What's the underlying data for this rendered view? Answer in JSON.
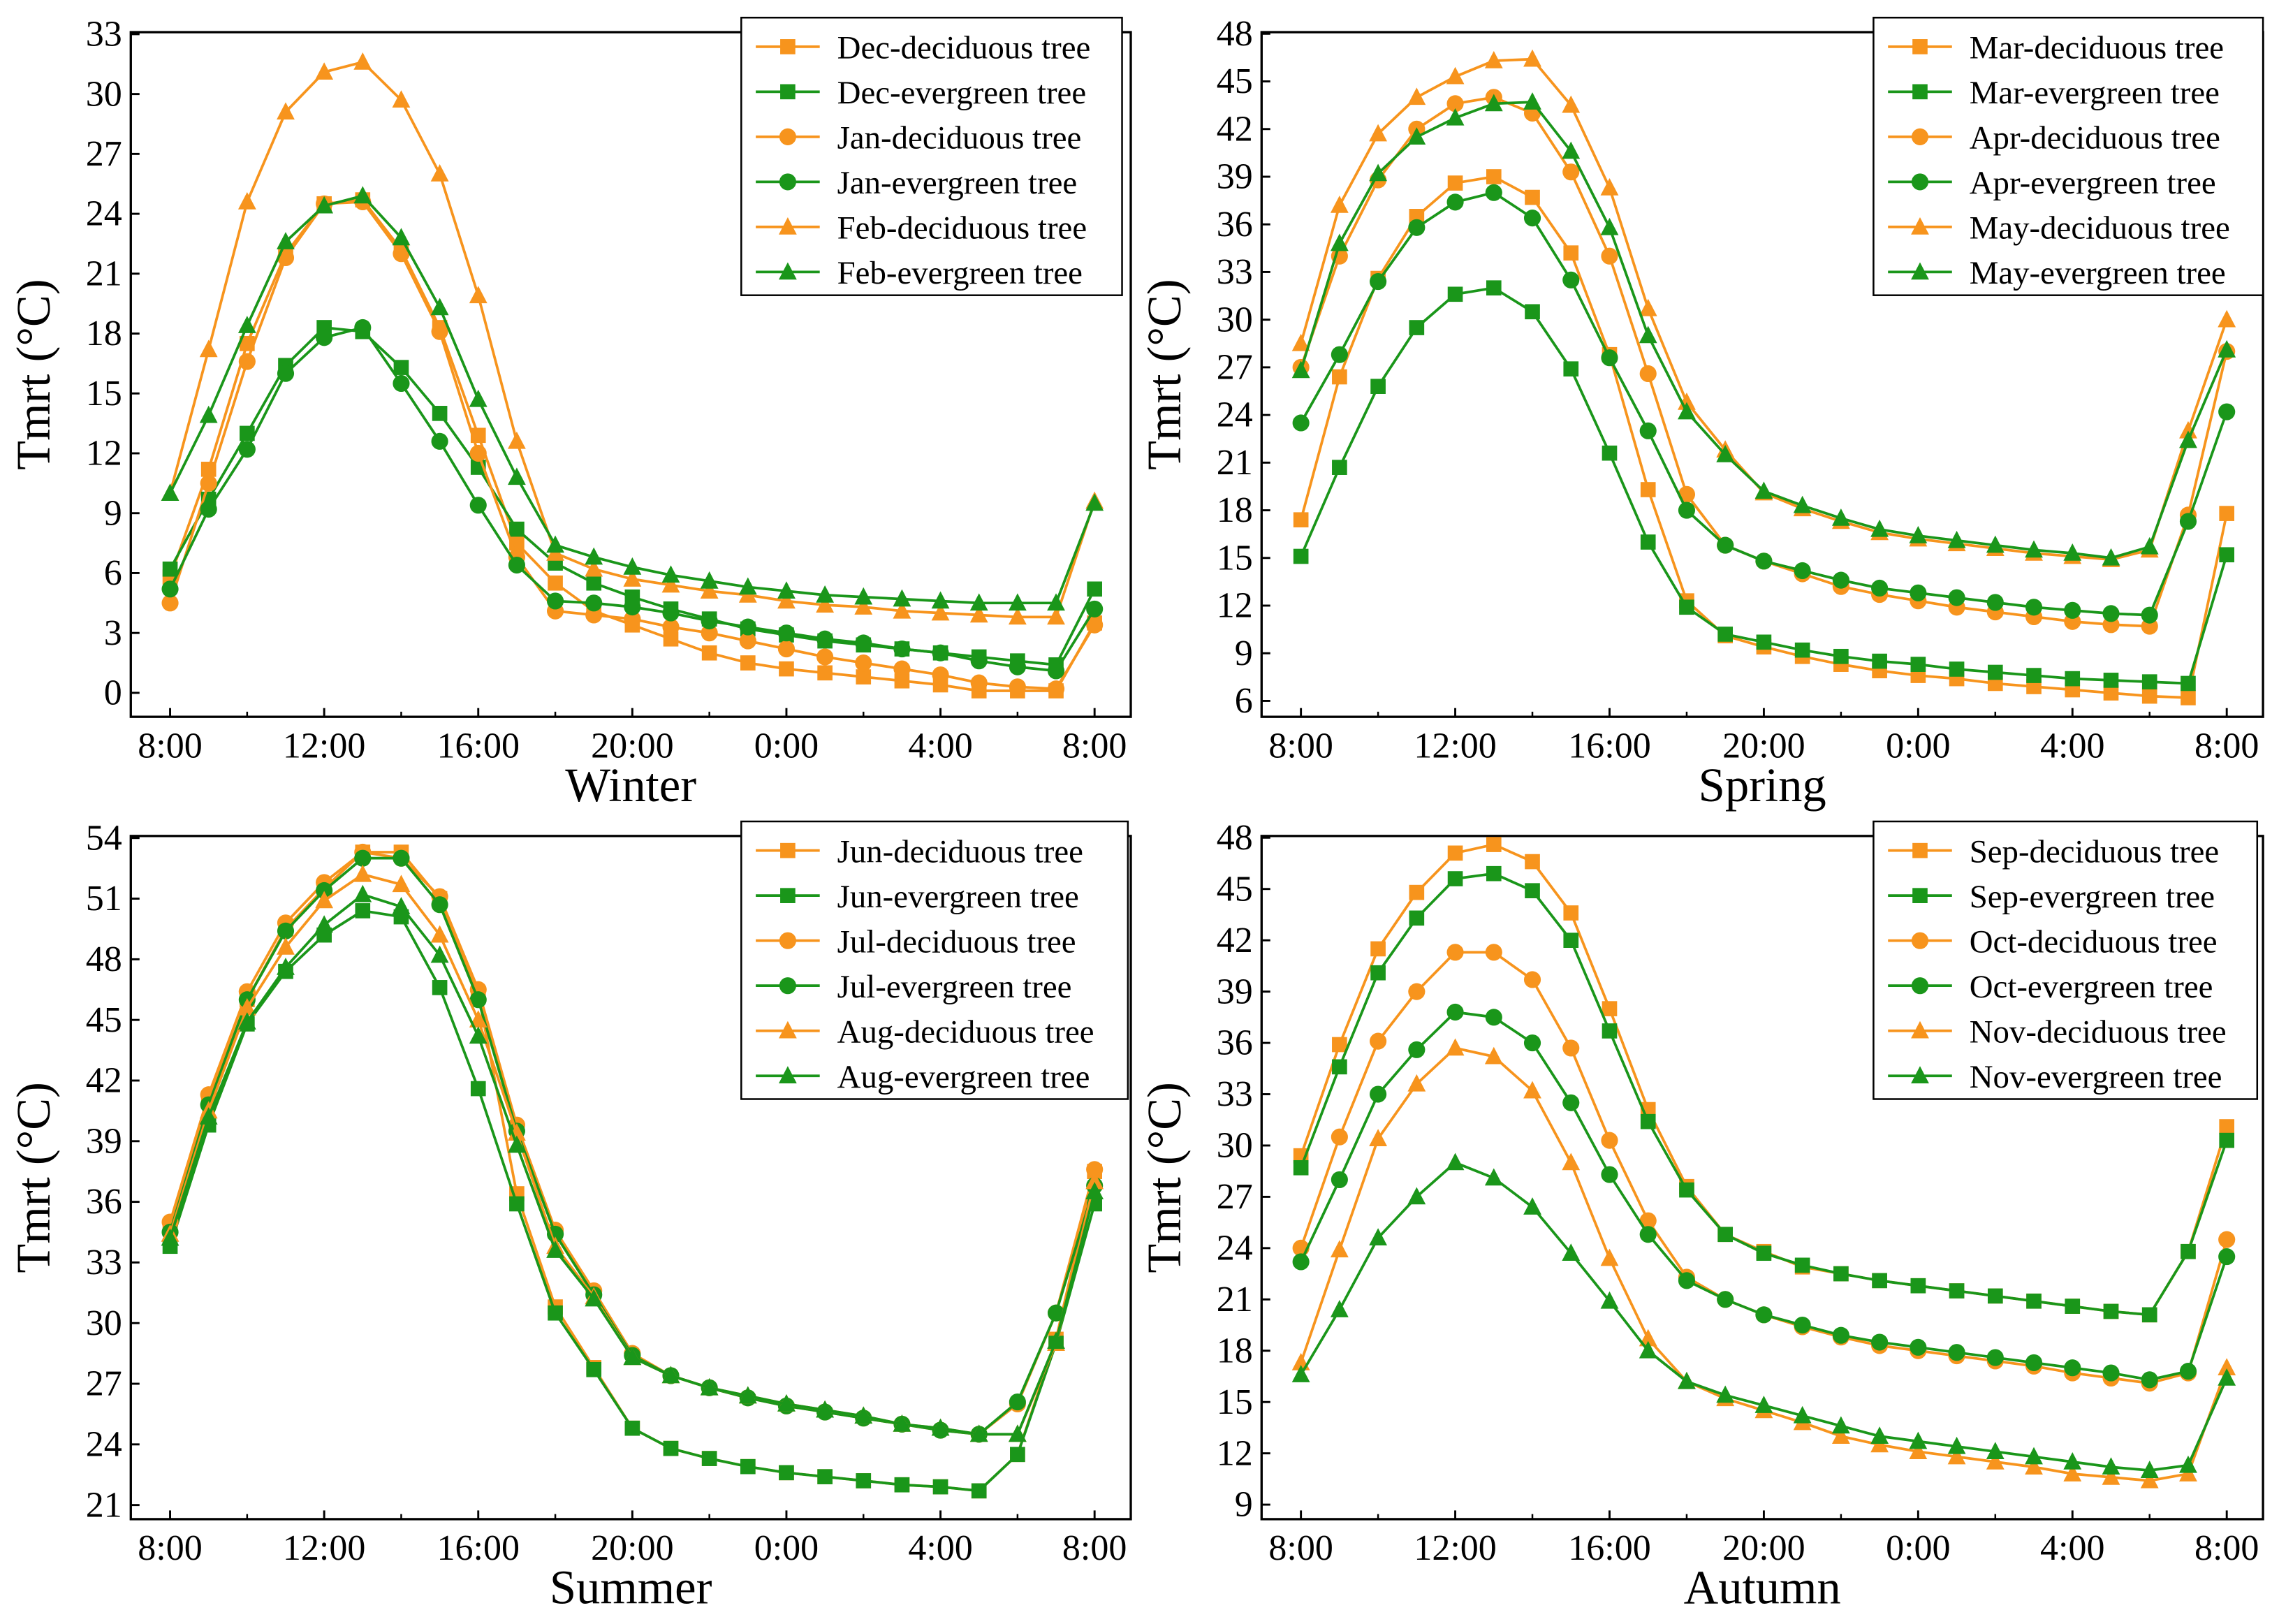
{
  "colors": {
    "deciduous": "#F7941D",
    "evergreen": "#1A961A",
    "axis": "#000000"
  },
  "chart_data": [
    {
      "type": "line",
      "title": "",
      "xlabel": "Winter",
      "ylabel": "Tmrt (°C)",
      "x_ticks": [
        "8:00",
        "12:00",
        "16:00",
        "20:00",
        "0:00",
        "4:00",
        "8:00"
      ],
      "x_hours": [
        "8:00",
        "9:00",
        "10:00",
        "11:00",
        "12:00",
        "13:00",
        "14:00",
        "15:00",
        "16:00",
        "17:00",
        "18:00",
        "19:00",
        "20:00",
        "21:00",
        "22:00",
        "23:00",
        "0:00",
        "1:00",
        "2:00",
        "3:00",
        "4:00",
        "5:00",
        "6:00",
        "7:00",
        "8:00"
      ],
      "ylim": [
        -1.2,
        33.1
      ],
      "xlim": [
        -1.02,
        24.94
      ],
      "y_ticks": [
        0,
        3,
        6,
        9,
        12,
        15,
        18,
        21,
        24,
        27,
        30,
        33
      ],
      "legend_position": "top-right",
      "series": [
        {
          "name": "Dec-deciduous tree",
          "color": "#F7941D",
          "marker": "square",
          "values": [
            5.8,
            11.2,
            17.5,
            22.0,
            24.5,
            24.7,
            22.2,
            18.3,
            12.9,
            7.5,
            5.5,
            4.1,
            3.4,
            2.7,
            2.0,
            1.5,
            1.2,
            1.0,
            0.8,
            0.6,
            0.4,
            0.1,
            0.1,
            0.1,
            3.5
          ]
        },
        {
          "name": "Dec-evergreen tree",
          "color": "#1A961A",
          "marker": "square",
          "values": [
            6.2,
            9.7,
            13.0,
            16.4,
            18.3,
            18.1,
            16.3,
            14.0,
            11.3,
            8.2,
            6.5,
            5.5,
            4.8,
            4.2,
            3.7,
            3.2,
            2.9,
            2.6,
            2.4,
            2.2,
            2.0,
            1.8,
            1.6,
            1.4,
            5.2
          ]
        },
        {
          "name": "Jan-deciduous tree",
          "color": "#F7941D",
          "marker": "circle",
          "values": [
            4.5,
            10.5,
            16.6,
            21.8,
            24.5,
            24.6,
            22.0,
            18.1,
            12.0,
            6.8,
            4.1,
            3.9,
            3.7,
            3.3,
            3.0,
            2.6,
            2.2,
            1.8,
            1.5,
            1.2,
            0.9,
            0.5,
            0.3,
            0.2,
            3.4
          ]
        },
        {
          "name": "Jan-evergreen tree",
          "color": "#1A961A",
          "marker": "circle",
          "values": [
            5.2,
            9.2,
            12.2,
            16.0,
            17.8,
            18.3,
            15.5,
            12.6,
            9.4,
            6.4,
            4.6,
            4.5,
            4.3,
            4.0,
            3.6,
            3.3,
            3.0,
            2.7,
            2.5,
            2.2,
            2.0,
            1.6,
            1.3,
            1.1,
            4.2
          ]
        },
        {
          "name": "Feb-deciduous tree",
          "color": "#F7941D",
          "marker": "triangle",
          "values": [
            10.0,
            17.2,
            24.6,
            29.1,
            31.1,
            31.6,
            29.7,
            26.0,
            19.9,
            12.6,
            7.0,
            6.2,
            5.7,
            5.4,
            5.1,
            4.9,
            4.6,
            4.4,
            4.3,
            4.1,
            4.0,
            3.9,
            3.8,
            3.8,
            9.6
          ]
        },
        {
          "name": "Feb-evergreen tree",
          "color": "#1A961A",
          "marker": "triangle",
          "values": [
            10.0,
            13.9,
            18.4,
            22.6,
            24.4,
            24.9,
            22.8,
            19.3,
            14.7,
            10.8,
            7.4,
            6.8,
            6.3,
            5.9,
            5.6,
            5.3,
            5.1,
            4.9,
            4.8,
            4.7,
            4.6,
            4.5,
            4.5,
            4.5,
            9.5
          ]
        }
      ]
    },
    {
      "type": "line",
      "title": "",
      "xlabel": "Spring",
      "ylabel": "Tmrt (°C)",
      "x_ticks": [
        "8:00",
        "12:00",
        "16:00",
        "20:00",
        "0:00",
        "4:00",
        "8:00"
      ],
      "ylim": [
        5.0,
        48.1
      ],
      "xlim": [
        -1.02,
        24.94
      ],
      "y_ticks": [
        6,
        9,
        12,
        15,
        18,
        21,
        24,
        27,
        30,
        33,
        36,
        39,
        42,
        45,
        48
      ],
      "legend_position": "top-right",
      "series": [
        {
          "name": "Mar-deciduous tree",
          "color": "#F7941D",
          "marker": "square",
          "values": [
            17.4,
            26.4,
            32.6,
            36.5,
            38.6,
            39.0,
            37.7,
            34.2,
            27.8,
            19.3,
            12.3,
            10.1,
            9.4,
            8.8,
            8.3,
            7.9,
            7.6,
            7.4,
            7.1,
            6.9,
            6.7,
            6.5,
            6.3,
            6.2,
            17.8
          ]
        },
        {
          "name": "Mar-evergreen tree",
          "color": "#1A961A",
          "marker": "square",
          "values": [
            15.1,
            20.7,
            25.8,
            29.5,
            31.6,
            32.0,
            30.5,
            26.9,
            21.6,
            16.0,
            11.9,
            10.2,
            9.7,
            9.2,
            8.8,
            8.5,
            8.3,
            8.0,
            7.8,
            7.6,
            7.4,
            7.3,
            7.2,
            7.1,
            15.2
          ]
        },
        {
          "name": "Apr-deciduous tree",
          "color": "#F7941D",
          "marker": "circle",
          "values": [
            27.0,
            34.0,
            38.8,
            42.0,
            43.6,
            44.0,
            43.0,
            39.3,
            34.0,
            26.6,
            19.0,
            15.8,
            14.8,
            14.0,
            13.2,
            12.7,
            12.3,
            11.9,
            11.6,
            11.3,
            11.0,
            10.8,
            10.7,
            17.7,
            28.0
          ]
        },
        {
          "name": "Apr-evergreen tree",
          "color": "#1A961A",
          "marker": "circle",
          "values": [
            23.5,
            27.8,
            32.4,
            35.8,
            37.4,
            38.0,
            36.4,
            32.5,
            27.6,
            23.0,
            18.0,
            15.8,
            14.8,
            14.2,
            13.6,
            13.1,
            12.8,
            12.5,
            12.2,
            11.9,
            11.7,
            11.5,
            11.4,
            17.3,
            24.2
          ]
        },
        {
          "name": "May-deciduous tree",
          "color": "#F7941D",
          "marker": "triangle",
          "values": [
            28.5,
            37.2,
            41.7,
            44.0,
            45.3,
            46.3,
            46.4,
            43.5,
            38.3,
            30.7,
            24.8,
            21.8,
            19.1,
            18.1,
            17.3,
            16.6,
            16.2,
            15.9,
            15.6,
            15.3,
            15.1,
            14.9,
            15.5,
            23.0,
            30.0
          ]
        },
        {
          "name": "May-evergreen tree",
          "color": "#1A961A",
          "marker": "triangle",
          "values": [
            26.8,
            34.8,
            39.2,
            41.5,
            42.7,
            43.6,
            43.7,
            40.6,
            35.8,
            29.0,
            24.2,
            21.5,
            19.2,
            18.3,
            17.5,
            16.8,
            16.4,
            16.1,
            15.8,
            15.5,
            15.3,
            15.0,
            15.7,
            22.4,
            28.1
          ]
        }
      ]
    },
    {
      "type": "line",
      "title": "",
      "xlabel": "Summer",
      "ylabel": "Tmrt (°C)",
      "x_ticks": [
        "8:00",
        "12:00",
        "16:00",
        "20:00",
        "0:00",
        "4:00",
        "8:00"
      ],
      "ylim": [
        20.3,
        54.1
      ],
      "xlim": [
        -1.02,
        24.94
      ],
      "y_ticks": [
        21,
        24,
        27,
        30,
        33,
        36,
        39,
        42,
        45,
        48,
        51,
        54
      ],
      "legend_position": "top-right",
      "series": [
        {
          "name": "Jun-deciduous tree",
          "color": "#F7941D",
          "marker": "square",
          "values": [
            34.8,
            41.0,
            46.0,
            49.5,
            51.5,
            53.3,
            53.3,
            51.0,
            46.3,
            36.4,
            30.8,
            27.8,
            24.8,
            23.8,
            23.3,
            22.9,
            22.6,
            22.4,
            22.2,
            22.0,
            21.9,
            21.7,
            23.5,
            29.2,
            37.5
          ]
        },
        {
          "name": "Jun-evergreen tree",
          "color": "#1A961A",
          "marker": "square",
          "values": [
            33.8,
            39.8,
            44.8,
            47.4,
            49.2,
            50.4,
            50.1,
            46.6,
            41.6,
            35.9,
            30.5,
            27.7,
            24.8,
            23.8,
            23.3,
            22.9,
            22.6,
            22.4,
            22.2,
            22.0,
            21.9,
            21.7,
            23.5,
            29.0,
            35.9
          ]
        },
        {
          "name": "Jul-deciduous tree",
          "color": "#F7941D",
          "marker": "circle",
          "values": [
            35.0,
            41.3,
            46.4,
            49.8,
            51.8,
            53.3,
            53.0,
            51.1,
            46.5,
            39.8,
            34.6,
            31.6,
            28.5,
            27.4,
            26.8,
            26.3,
            25.9,
            25.6,
            25.3,
            25.0,
            24.7,
            24.5,
            26.0,
            30.5,
            37.6
          ]
        },
        {
          "name": "Jul-evergreen tree",
          "color": "#1A961A",
          "marker": "circle",
          "values": [
            34.5,
            40.8,
            46.0,
            49.4,
            51.4,
            53.0,
            53.0,
            50.7,
            46.0,
            39.5,
            34.4,
            31.4,
            28.4,
            27.4,
            26.8,
            26.3,
            25.9,
            25.6,
            25.3,
            25.0,
            24.7,
            24.5,
            26.1,
            30.5,
            36.8
          ]
        },
        {
          "name": "Aug-deciduous tree",
          "color": "#F7941D",
          "marker": "triangle",
          "values": [
            34.4,
            40.5,
            45.6,
            48.6,
            50.9,
            52.2,
            51.7,
            49.2,
            45.0,
            39.4,
            33.8,
            31.3,
            28.3,
            27.4,
            26.8,
            26.4,
            26.0,
            25.7,
            25.4,
            25.0,
            24.8,
            24.5,
            24.5,
            29.0,
            37.0
          ]
        },
        {
          "name": "Aug-evergreen tree",
          "color": "#1A961A",
          "marker": "triangle",
          "values": [
            34.2,
            40.2,
            44.9,
            47.6,
            49.7,
            51.2,
            50.6,
            48.2,
            44.2,
            38.8,
            33.6,
            31.2,
            28.3,
            27.4,
            26.8,
            26.4,
            26.0,
            25.7,
            25.4,
            25.0,
            24.8,
            24.5,
            24.5,
            29.1,
            36.5
          ]
        }
      ]
    },
    {
      "type": "line",
      "title": "",
      "xlabel": "Autumn",
      "ylabel": "Tmrt (°C)",
      "x_ticks": [
        "8:00",
        "12:00",
        "16:00",
        "20:00",
        "0:00",
        "4:00",
        "8:00"
      ],
      "ylim": [
        8.15,
        48.1
      ],
      "xlim": [
        -1.02,
        24.94
      ],
      "y_ticks": [
        9,
        12,
        15,
        18,
        21,
        24,
        27,
        30,
        33,
        36,
        39,
        42,
        45,
        48
      ],
      "legend_position": "top-right",
      "series": [
        {
          "name": "Sep-deciduous tree",
          "color": "#F7941D",
          "marker": "square",
          "values": [
            29.4,
            35.9,
            41.5,
            44.8,
            47.1,
            47.6,
            46.6,
            43.6,
            38.0,
            32.1,
            27.6,
            24.8,
            23.8,
            22.9,
            22.5,
            22.1,
            21.8,
            21.5,
            21.2,
            20.9,
            20.6,
            20.3,
            20.1,
            23.8,
            31.1
          ]
        },
        {
          "name": "Sep-evergreen tree",
          "color": "#1A961A",
          "marker": "square",
          "values": [
            28.7,
            34.6,
            40.1,
            43.3,
            45.6,
            45.9,
            44.9,
            42.0,
            36.7,
            31.4,
            27.4,
            24.8,
            23.7,
            23.0,
            22.5,
            22.1,
            21.8,
            21.5,
            21.2,
            20.9,
            20.6,
            20.3,
            20.1,
            23.8,
            30.3
          ]
        },
        {
          "name": "Oct-deciduous tree",
          "color": "#F7941D",
          "marker": "circle",
          "values": [
            24.0,
            30.5,
            36.1,
            39.0,
            41.3,
            41.3,
            39.7,
            35.7,
            30.3,
            25.6,
            22.3,
            21.0,
            20.1,
            19.4,
            18.8,
            18.3,
            18.0,
            17.7,
            17.4,
            17.1,
            16.7,
            16.4,
            16.1,
            16.7,
            24.5
          ]
        },
        {
          "name": "Oct-evergreen tree",
          "color": "#1A961A",
          "marker": "circle",
          "values": [
            23.2,
            28.0,
            33.0,
            35.6,
            37.8,
            37.5,
            36.0,
            32.5,
            28.3,
            24.8,
            22.1,
            21.0,
            20.1,
            19.5,
            18.9,
            18.5,
            18.2,
            17.9,
            17.6,
            17.3,
            17.0,
            16.7,
            16.3,
            16.8,
            23.5
          ]
        },
        {
          "name": "Nov-deciduous tree",
          "color": "#F7941D",
          "marker": "triangle",
          "values": [
            17.3,
            23.9,
            30.4,
            33.6,
            35.7,
            35.2,
            33.2,
            29.0,
            23.4,
            18.7,
            16.2,
            15.2,
            14.5,
            13.8,
            13.0,
            12.5,
            12.1,
            11.8,
            11.5,
            11.2,
            10.8,
            10.6,
            10.4,
            10.8,
            17.0
          ]
        },
        {
          "name": "Nov-evergreen tree",
          "color": "#1A961A",
          "marker": "triangle",
          "values": [
            16.6,
            20.4,
            24.6,
            27.0,
            29.0,
            28.1,
            26.4,
            23.7,
            20.9,
            18.0,
            16.2,
            15.4,
            14.8,
            14.2,
            13.6,
            13.0,
            12.7,
            12.4,
            12.1,
            11.8,
            11.5,
            11.2,
            11.0,
            11.3,
            16.4
          ]
        }
      ]
    }
  ]
}
